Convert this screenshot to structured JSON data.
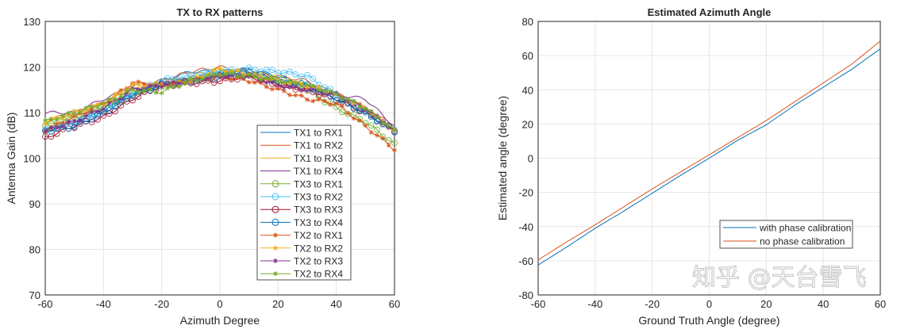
{
  "chart_data": [
    {
      "type": "line",
      "title": "TX to RX patterns",
      "xlabel": "Azimuth Degree",
      "ylabel": "Antenna Gain (dB)",
      "xlim": [
        -60,
        60
      ],
      "ylim": [
        70,
        130
      ],
      "xticks": [
        -60,
        -40,
        -20,
        0,
        20,
        40,
        60
      ],
      "yticks": [
        70,
        80,
        90,
        100,
        110,
        120,
        130
      ],
      "grid": true,
      "legend_position": "bottom-right",
      "x": [
        -60,
        -50,
        -40,
        -30,
        -20,
        -10,
        0,
        10,
        20,
        30,
        40,
        50,
        60
      ],
      "series": [
        {
          "name": "TX1 to RX1",
          "color": "#0072BD",
          "marker": "none",
          "values": [
            106,
            108,
            111,
            114,
            117,
            119,
            119,
            119.5,
            118,
            116,
            113,
            110,
            106
          ]
        },
        {
          "name": "TX1 to RX2",
          "color": "#D95319",
          "marker": "none",
          "values": [
            108,
            110,
            112,
            116,
            117,
            119,
            120,
            119,
            118,
            117,
            114,
            111,
            107
          ]
        },
        {
          "name": "TX1 to RX3",
          "color": "#EDB120",
          "marker": "none",
          "values": [
            108,
            109,
            112,
            115,
            116,
            118,
            119.5,
            119,
            118,
            116,
            114,
            111,
            106
          ]
        },
        {
          "name": "TX1 to RX4",
          "color": "#7E2F8E",
          "marker": "none",
          "values": [
            110,
            110,
            113,
            115,
            116,
            117,
            118,
            118.5,
            117,
            116,
            114,
            113,
            107
          ]
        },
        {
          "name": "TX3 to RX1",
          "color": "#77AC30",
          "marker": "circle",
          "values": [
            107,
            109,
            111,
            114,
            116,
            117,
            119,
            118,
            117,
            115,
            111,
            108,
            103
          ]
        },
        {
          "name": "TX3 to RX2",
          "color": "#4DBEEE",
          "marker": "circle",
          "values": [
            106,
            108,
            110,
            114,
            117,
            118,
            119,
            119.5,
            119,
            118,
            114,
            110,
            106
          ]
        },
        {
          "name": "TX3 to RX3",
          "color": "#A2142F",
          "marker": "circle",
          "values": [
            104.5,
            107,
            109,
            113,
            116,
            116.5,
            117,
            118,
            116,
            115,
            113,
            110,
            106
          ]
        },
        {
          "name": "TX3 to RX4",
          "color": "#0072BD",
          "marker": "circle",
          "values": [
            106,
            107,
            110,
            114,
            116,
            117,
            118,
            119,
            117,
            116,
            113,
            110,
            106
          ]
        },
        {
          "name": "TX2 to RX1",
          "color": "#D95319",
          "marker": "star",
          "values": [
            106,
            109,
            112,
            116.5,
            116,
            117,
            118,
            117,
            115,
            113,
            112,
            107,
            102
          ]
        },
        {
          "name": "TX2 to RX2",
          "color": "#EDB120",
          "marker": "star",
          "values": [
            108,
            110,
            112,
            116,
            116,
            117,
            119.5,
            118.5,
            117,
            116,
            114,
            111,
            106
          ]
        },
        {
          "name": "TX2 to RX3",
          "color": "#7E2F8E",
          "marker": "star",
          "values": [
            106,
            108,
            111,
            115,
            116,
            117,
            118,
            118,
            116,
            115,
            114,
            111,
            106
          ]
        },
        {
          "name": "TX2 to RX4",
          "color": "#77AC30",
          "marker": "star",
          "values": [
            108,
            110,
            112,
            115,
            114.5,
            117,
            118.5,
            118,
            117,
            116,
            114,
            111,
            106
          ]
        }
      ]
    },
    {
      "type": "line",
      "title": "Estimated Azimuth Angle",
      "xlabel": "Ground Truth Angle (degree)",
      "ylabel": "Estimated angle (degree)",
      "xlim": [
        -60,
        60
      ],
      "ylim": [
        -80,
        80
      ],
      "xticks": [
        -60,
        -40,
        -20,
        0,
        20,
        40,
        60
      ],
      "yticks": [
        -80,
        -60,
        -40,
        -20,
        0,
        20,
        40,
        60,
        80
      ],
      "grid": true,
      "legend_position": "bottom-right",
      "x": [
        -60,
        -50,
        -40,
        -30,
        -20,
        -10,
        0,
        10,
        20,
        30,
        40,
        50,
        60
      ],
      "series": [
        {
          "name": "with phase calibration",
          "color": "#0072BD",
          "values": [
            -62.5,
            -52,
            -41,
            -31,
            -20.5,
            -10,
            0,
            10.5,
            19.5,
            31,
            41.5,
            52,
            64
          ]
        },
        {
          "name": "no phase calibration",
          "color": "#D95319",
          "values": [
            -59.5,
            -49,
            -39,
            -28.5,
            -18,
            -8,
            2,
            12,
            22,
            33,
            44,
            55,
            68.5
          ]
        }
      ]
    }
  ],
  "watermark": "知乎 @天台雪飞"
}
